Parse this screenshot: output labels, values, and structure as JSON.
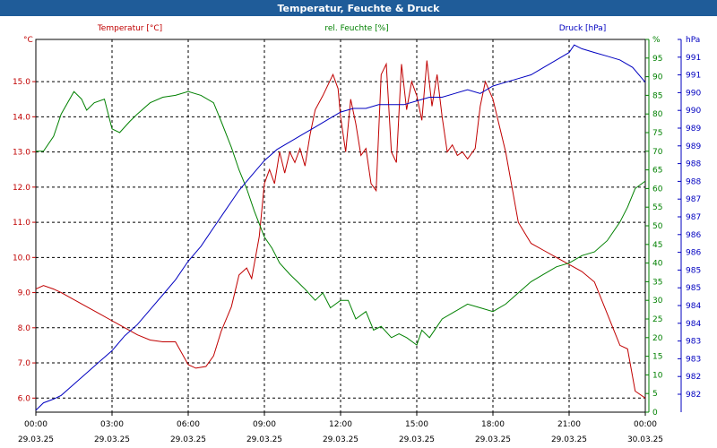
{
  "window": {
    "title": "Temperatur, Feuchte & Druck"
  },
  "colors": {
    "temperature": "#c00000",
    "humidity": "#008000",
    "pressure": "#0000c0",
    "titlebar": "#1f5c99",
    "grid": "#000000"
  },
  "chart_data": {
    "type": "line",
    "title": "Temperatur, Feuchte & Druck",
    "grid": true,
    "x_ticks": [
      {
        "hour": 0,
        "time": "00:00",
        "date": "29.03.25"
      },
      {
        "hour": 3,
        "time": "03:00",
        "date": "29.03.25"
      },
      {
        "hour": 6,
        "time": "06:00",
        "date": "29.03.25"
      },
      {
        "hour": 9,
        "time": "09:00",
        "date": "29.03.25"
      },
      {
        "hour": 12,
        "time": "12:00",
        "date": "29.03.25"
      },
      {
        "hour": 15,
        "time": "15:00",
        "date": "29.03.25"
      },
      {
        "hour": 18,
        "time": "18:00",
        "date": "29.03.25"
      },
      {
        "hour": 21,
        "time": "21:00",
        "date": "29.03.25"
      },
      {
        "hour": 24,
        "time": "00:00",
        "date": "30.03.25"
      }
    ],
    "xlim": [
      0,
      24
    ],
    "axes": {
      "temperature": {
        "label": "Temperatur [°C]",
        "unit": "°C",
        "ylim": [
          5.6,
          16.2
        ],
        "ticks": [
          "6.0",
          "7.0",
          "8.0",
          "9.0",
          "10.0",
          "11.0",
          "12.0",
          "13.0",
          "14.0",
          "15.0"
        ]
      },
      "humidity": {
        "label": "rel. Feuchte [%]",
        "unit": "%",
        "ylim": [
          0,
          100
        ],
        "ticks": [
          "0",
          "5",
          "10",
          "15",
          "20",
          "25",
          "30",
          "35",
          "40",
          "45",
          "50",
          "55",
          "60",
          "65",
          "70",
          "75",
          "80",
          "85",
          "90",
          "95",
          "%"
        ]
      },
      "pressure": {
        "label": "Druck [hPa]",
        "unit": "hPa",
        "ylim": [
          981.75,
          991.75
        ],
        "ticks": [
          "982",
          "982",
          "983",
          "983",
          "984",
          "984",
          "985",
          "985",
          "986",
          "986",
          "987",
          "987",
          "988",
          "988",
          "989",
          "989",
          "990",
          "990",
          "991",
          "991",
          "hPa"
        ]
      }
    },
    "series": [
      {
        "name": "Temperatur [°C]",
        "axis": "temperature",
        "x": [
          0,
          0.3,
          0.7,
          1,
          1.5,
          2,
          2.5,
          3,
          3.5,
          4,
          4.5,
          5,
          5.5,
          6,
          6.3,
          6.7,
          7,
          7.3,
          7.7,
          8,
          8.3,
          8.5,
          8.8,
          9,
          9.2,
          9.4,
          9.6,
          9.8,
          10,
          10.2,
          10.4,
          10.6,
          10.8,
          11,
          11.3,
          11.7,
          11.9,
          12,
          12.2,
          12.4,
          12.6,
          12.8,
          13,
          13.2,
          13.4,
          13.6,
          13.8,
          14,
          14.2,
          14.4,
          14.6,
          14.8,
          15,
          15.2,
          15.4,
          15.6,
          15.8,
          16,
          16.2,
          16.4,
          16.6,
          16.8,
          17,
          17.3,
          17.5,
          17.7,
          18,
          18.5,
          19,
          19.5,
          20,
          20.5,
          21,
          21.5,
          22,
          22.5,
          23,
          23.3,
          23.6,
          24
        ],
        "values": [
          9.1,
          9.2,
          9.1,
          9.0,
          8.8,
          8.6,
          8.4,
          8.2,
          8.0,
          7.8,
          7.65,
          7.6,
          7.6,
          6.95,
          6.85,
          6.9,
          7.2,
          7.9,
          8.6,
          9.5,
          9.7,
          9.4,
          10.6,
          12.1,
          12.5,
          12.1,
          13.0,
          12.4,
          13.0,
          12.7,
          13.1,
          12.6,
          13.5,
          14.2,
          14.6,
          15.2,
          14.8,
          14.0,
          13.0,
          14.5,
          13.8,
          12.9,
          13.1,
          12.1,
          11.9,
          15.2,
          15.5,
          13.0,
          12.7,
          15.5,
          14.2,
          15.0,
          14.6,
          13.9,
          15.6,
          14.3,
          15.2,
          14.0,
          13.0,
          13.2,
          12.9,
          13.0,
          12.8,
          13.1,
          14.3,
          15.0,
          14.5,
          13.0,
          11.0,
          10.4,
          10.2,
          10.0,
          9.8,
          9.6,
          9.3,
          8.4,
          7.5,
          7.4,
          6.2,
          6.0
        ]
      },
      {
        "name": "rel. Feuchte [%]",
        "axis": "humidity",
        "x": [
          0,
          0.3,
          0.7,
          1,
          1.5,
          1.8,
          2,
          2.3,
          2.7,
          3,
          3.3,
          3.7,
          4,
          4.5,
          5,
          5.5,
          6,
          6.5,
          7,
          7.3,
          7.7,
          8,
          8.3,
          8.6,
          9,
          9.3,
          9.6,
          10,
          10.3,
          10.6,
          11,
          11.3,
          11.6,
          12,
          12.3,
          12.6,
          13,
          13.3,
          13.6,
          14,
          14.3,
          14.6,
          15,
          15.2,
          15.5,
          15.8,
          16,
          16.5,
          17,
          17.5,
          18,
          18.5,
          19,
          19.5,
          20,
          20.5,
          21,
          21.5,
          22,
          22.5,
          23,
          23.3,
          23.6,
          24
        ],
        "values": [
          70,
          70,
          74,
          80,
          86,
          84,
          81,
          83,
          84,
          76,
          75,
          78,
          80,
          83,
          84.5,
          85,
          86,
          85,
          83,
          78,
          71,
          65,
          60,
          54,
          47,
          44,
          40,
          37,
          35,
          33,
          30,
          32,
          28,
          30,
          30,
          25,
          27,
          22,
          23,
          20,
          21,
          20,
          18,
          22,
          20,
          23,
          25,
          27,
          29,
          28,
          27,
          29,
          32,
          35,
          37,
          39,
          40,
          42,
          43,
          46,
          51,
          55,
          60,
          62
        ]
      },
      {
        "name": "Druck [hPa]",
        "axis": "pressure",
        "x": [
          0,
          0.3,
          0.7,
          1,
          1.5,
          2,
          2.5,
          3,
          3.5,
          4,
          4.5,
          5,
          5.5,
          6,
          6.5,
          7,
          7.5,
          8,
          8.5,
          9,
          9.5,
          10,
          10.5,
          11,
          11.5,
          12,
          12.5,
          13,
          13.5,
          14,
          14.5,
          15,
          15.5,
          16,
          16.5,
          17,
          17.5,
          18,
          18.5,
          19,
          19.5,
          20,
          20.5,
          21,
          21.2,
          21.5,
          22,
          22.5,
          23,
          23.5,
          24
        ],
        "values": [
          981.8,
          982.0,
          982.1,
          982.2,
          982.5,
          982.8,
          983.1,
          983.4,
          983.8,
          984.1,
          984.5,
          984.9,
          985.3,
          985.8,
          986.2,
          986.7,
          987.2,
          987.7,
          988.1,
          988.5,
          988.8,
          989.0,
          989.2,
          989.4,
          989.6,
          989.8,
          989.9,
          989.9,
          990.0,
          990.0,
          990.0,
          990.1,
          990.2,
          990.2,
          990.3,
          990.4,
          990.3,
          990.5,
          990.6,
          990.7,
          990.8,
          991.0,
          991.2,
          991.4,
          991.6,
          991.5,
          991.4,
          991.3,
          991.2,
          991.0,
          990.6
        ]
      }
    ]
  }
}
